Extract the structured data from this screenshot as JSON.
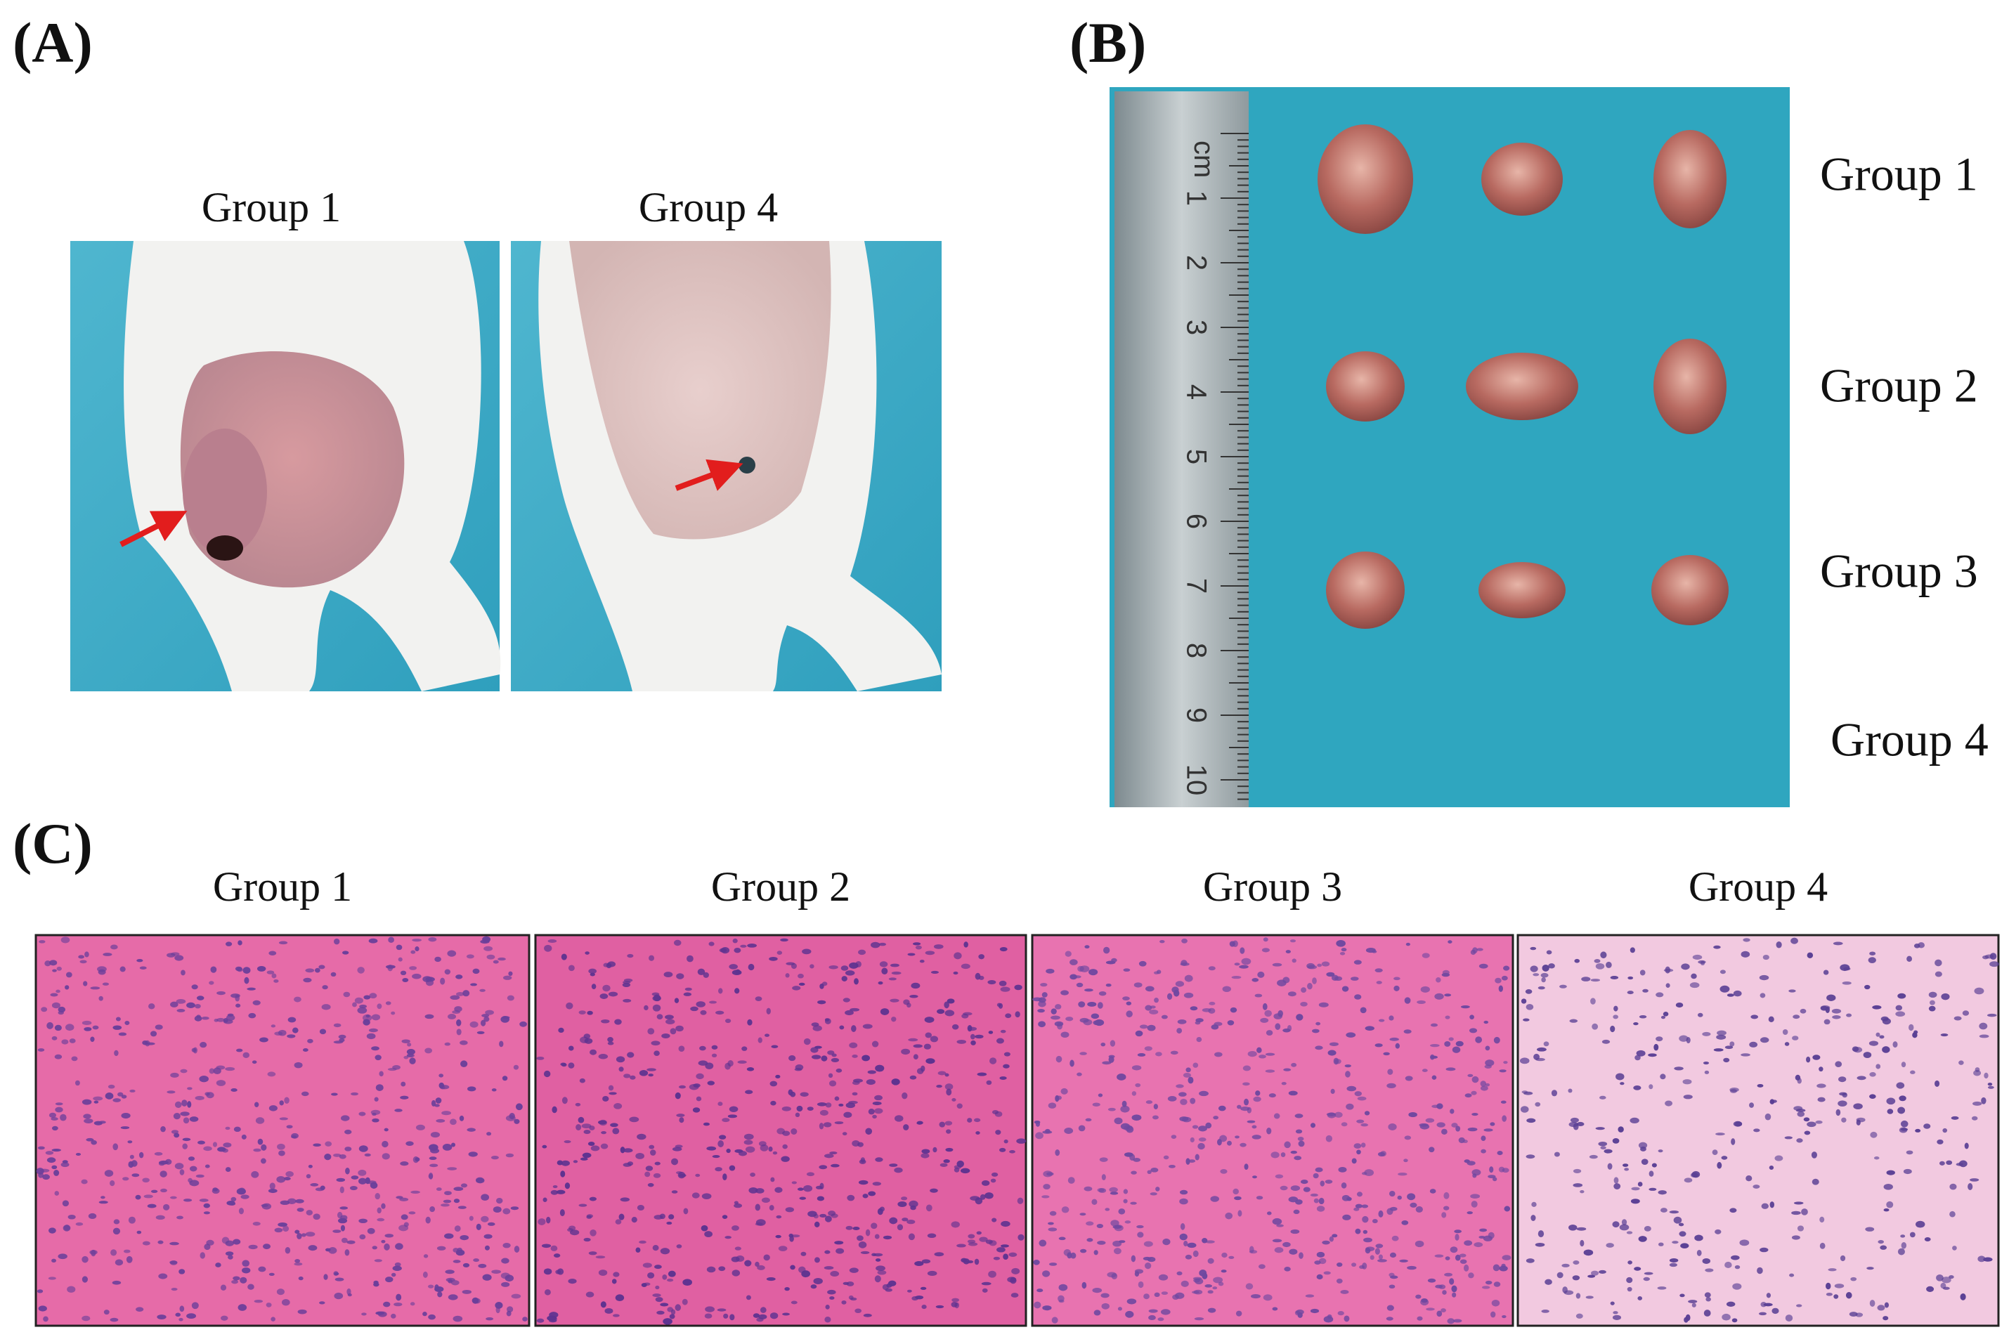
{
  "panels": {
    "a": {
      "label": "(A)",
      "groups": [
        "Group 1",
        "Group 4"
      ]
    },
    "b": {
      "label": "(B)",
      "ruler_unit": "cm",
      "ruler_numbers": [
        "1",
        "2",
        "3",
        "4",
        "5",
        "6",
        "7",
        "8",
        "9",
        "10"
      ],
      "groups": [
        "Group 1",
        "Group 2",
        "Group 3",
        "Group 4"
      ]
    },
    "c": {
      "label": "(C)",
      "groups": [
        "Group 1",
        "Group 2",
        "Group 3",
        "Group 4"
      ]
    }
  }
}
